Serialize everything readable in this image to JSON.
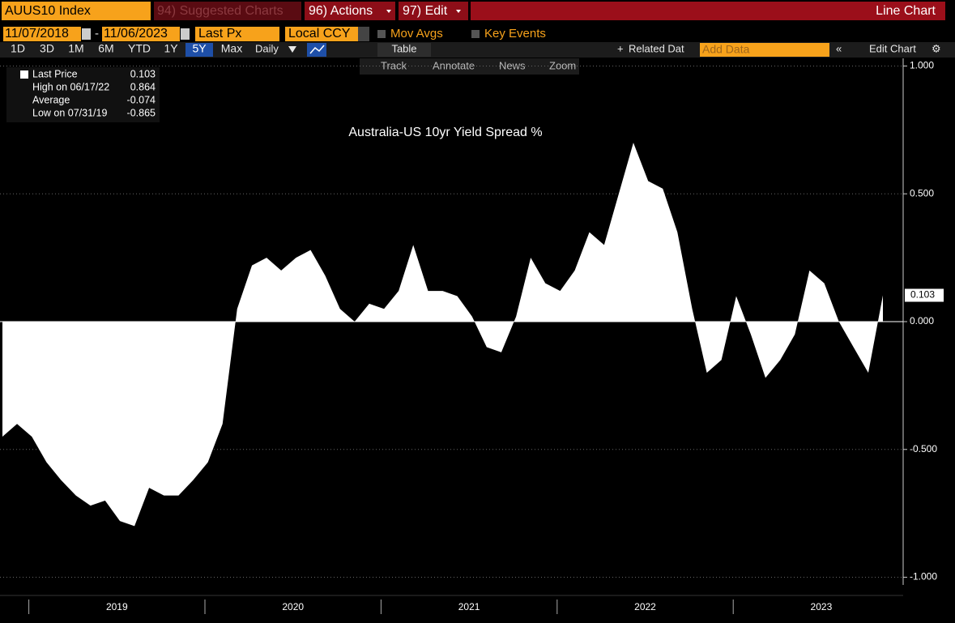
{
  "header": {
    "ticker": "AUUS10 Index",
    "menus": [
      "94) Suggested Charts",
      "96) Actions",
      "97) Edit"
    ],
    "view": "Line Chart"
  },
  "controls": {
    "start_date": "11/07/2018",
    "end_date": "11/06/2023",
    "field": "Last Px",
    "currency": "Local CCY",
    "options": [
      "Mov Avgs",
      "Key Events"
    ]
  },
  "toolbar": {
    "ranges": [
      "1D",
      "3D",
      "1M",
      "6M",
      "YTD",
      "1Y",
      "5Y",
      "Max"
    ],
    "active_range": 6,
    "frequency": "Daily",
    "table": "Table",
    "related": "Related Dat",
    "add_data": "Add Data",
    "edit_chart": "Edit Chart"
  },
  "tools": [
    "Track",
    "Annotate",
    "News",
    "Zoom"
  ],
  "legend": [
    {
      "label": "Last Price",
      "value": 0.103
    },
    {
      "label": "High on 06/17/22",
      "value": 0.864
    },
    {
      "label": "Average",
      "value": -0.074
    },
    {
      "label": "Low on 07/31/19",
      "value": -0.865
    }
  ],
  "chart_data": {
    "type": "area",
    "title": "Australia-US 10yr Yield Spread %",
    "color": "#ffffff",
    "x": [
      2018.85,
      2018.933,
      2019.017,
      2019.1,
      2019.183,
      2019.267,
      2019.35,
      2019.433,
      2019.517,
      2019.6,
      2019.683,
      2019.767,
      2019.85,
      2019.933,
      2020.017,
      2020.1,
      2020.183,
      2020.267,
      2020.35,
      2020.433,
      2020.517,
      2020.6,
      2020.683,
      2020.767,
      2020.85,
      2020.933,
      2021.017,
      2021.1,
      2021.183,
      2021.267,
      2021.35,
      2021.433,
      2021.517,
      2021.6,
      2021.683,
      2021.767,
      2021.85,
      2021.933,
      2022.017,
      2022.1,
      2022.183,
      2022.267,
      2022.35,
      2022.433,
      2022.517,
      2022.6,
      2022.683,
      2022.767,
      2022.85,
      2022.933,
      2023.017,
      2023.1,
      2023.183,
      2023.267,
      2023.35,
      2023.433,
      2023.517,
      2023.6,
      2023.683,
      2023.767,
      2023.85
    ],
    "values": [
      -0.45,
      -0.4,
      -0.45,
      -0.55,
      -0.62,
      -0.68,
      -0.72,
      -0.7,
      -0.78,
      -0.8,
      -0.65,
      -0.68,
      -0.68,
      -0.62,
      -0.55,
      -0.4,
      0.05,
      0.22,
      0.25,
      0.2,
      0.25,
      0.28,
      0.18,
      0.05,
      0.0,
      0.07,
      0.05,
      0.12,
      0.3,
      0.12,
      0.12,
      0.1,
      0.02,
      -0.1,
      -0.12,
      0.02,
      0.25,
      0.15,
      0.12,
      0.2,
      0.35,
      0.3,
      0.5,
      0.7,
      0.55,
      0.52,
      0.35,
      0.05,
      -0.2,
      -0.15,
      0.1,
      -0.05,
      -0.22,
      -0.15,
      -0.05,
      0.2,
      0.15,
      0.0,
      -0.1,
      -0.2,
      0.103
    ],
    "xlim": [
      2018.85,
      2023.85
    ],
    "xticks": [
      2019,
      2020,
      2021,
      2022,
      2023
    ],
    "ylim": [
      -1.03,
      1.03
    ],
    "yticks": [
      {
        "value": 1,
        "label": "1.000"
      },
      {
        "value": 0.5,
        "label": "0.500"
      },
      {
        "value": 0,
        "label": "0.000"
      },
      {
        "value": -0.5,
        "label": "-0.500"
      },
      {
        "value": -1,
        "label": "-1.000"
      }
    ],
    "grid": true
  }
}
